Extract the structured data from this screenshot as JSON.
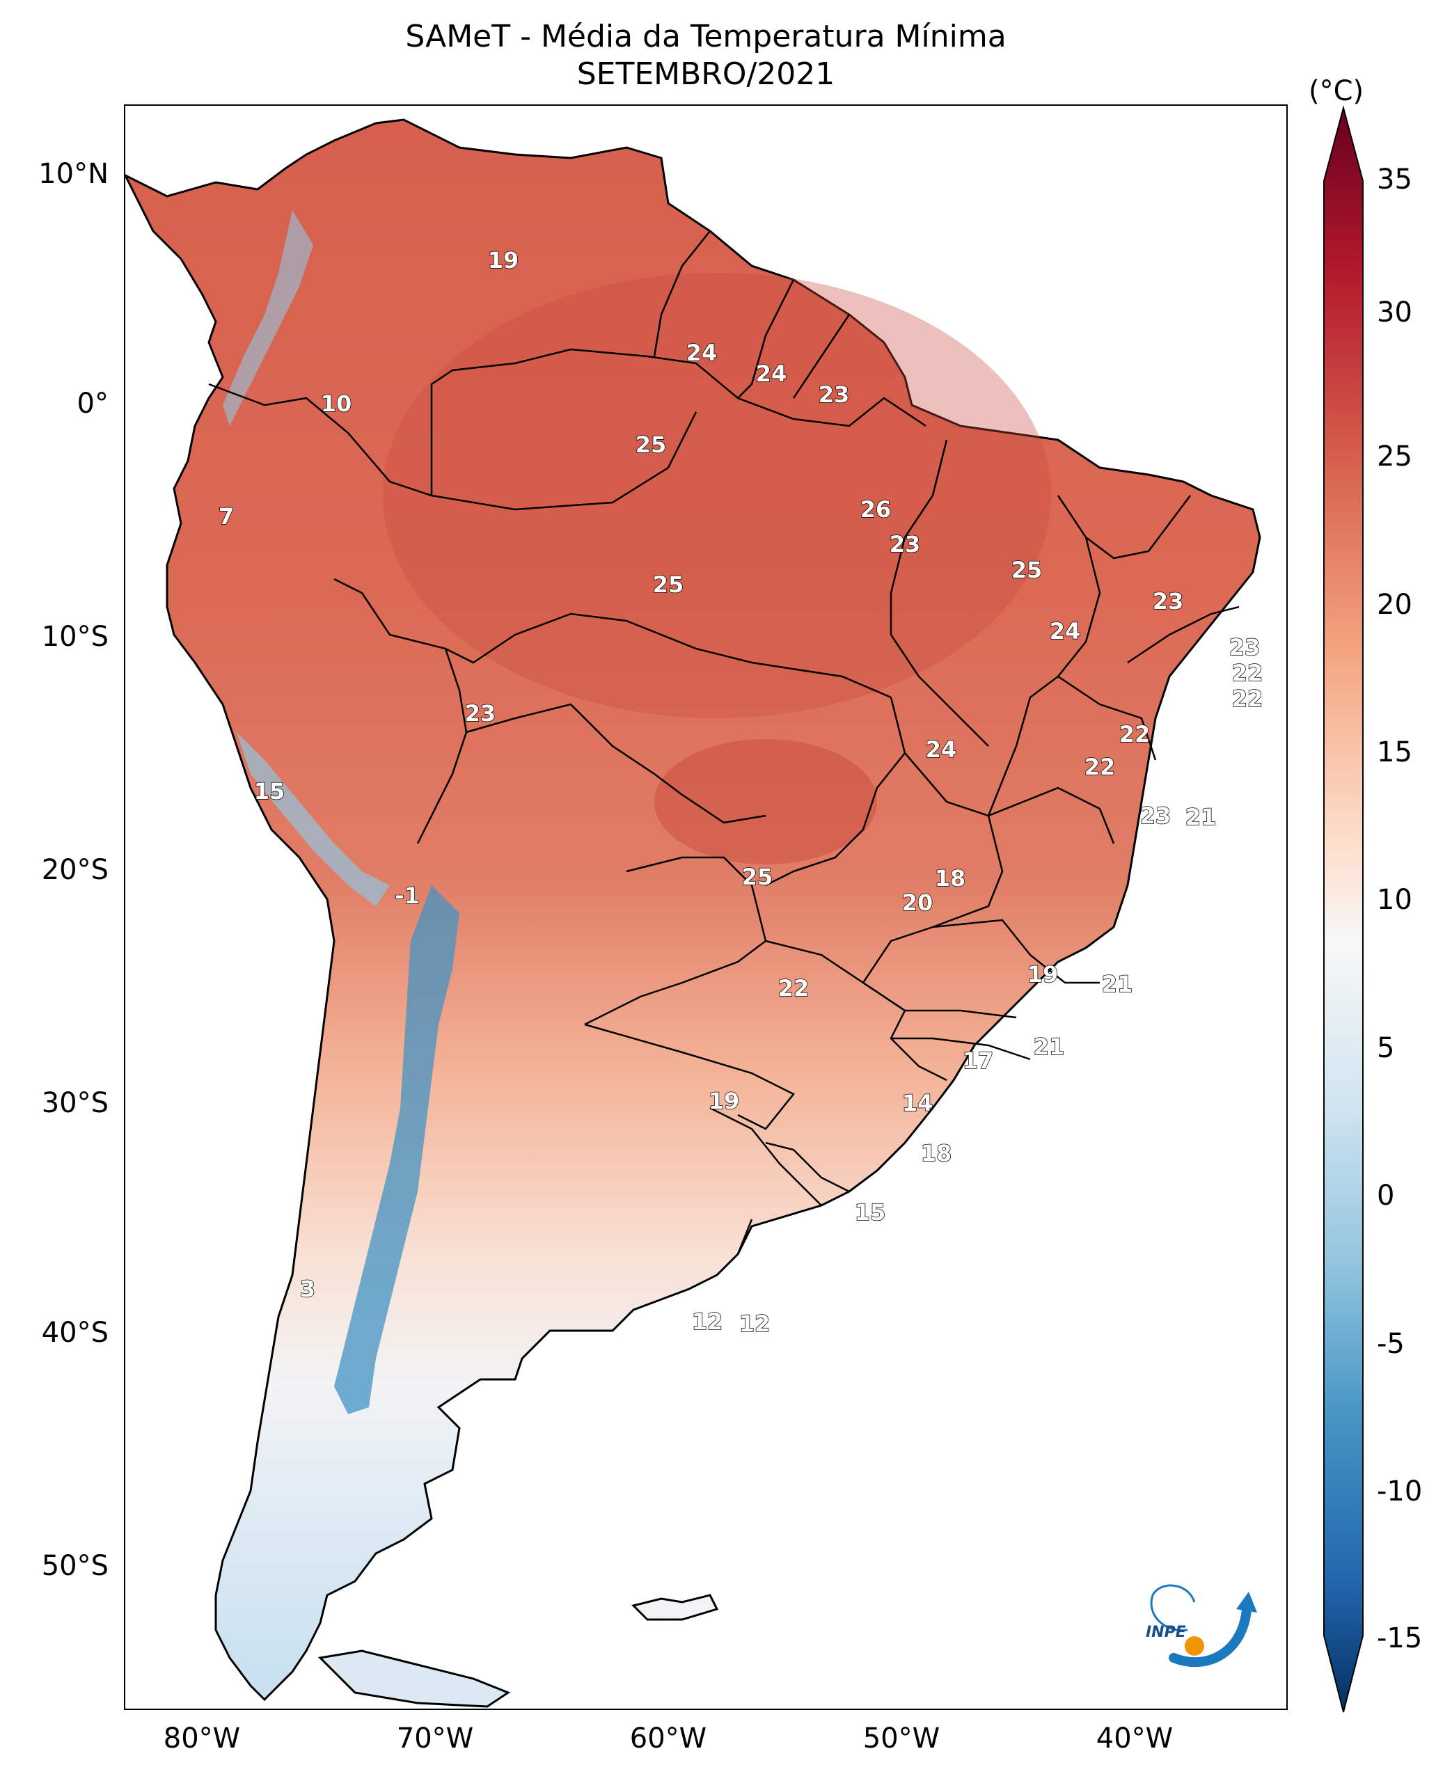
{
  "title": "SAMeT - Média da Temperatura Mínima",
  "subtitle": "SETEMBRO/2021",
  "colorbar": {
    "unit": "(°C)",
    "ticks": [
      "35",
      "30",
      "25",
      "20",
      "15",
      "10",
      "5",
      "0",
      "-5",
      "-10",
      "-15"
    ]
  },
  "axes": {
    "lat_ticks": [
      "10°N",
      "0°",
      "10°S",
      "20°S",
      "30°S",
      "40°S",
      "50°S"
    ],
    "lon_ticks": [
      "80°W",
      "70°W",
      "60°W",
      "50°W",
      "40°W"
    ]
  },
  "logo_text": "INPE",
  "map_labels": [
    "19",
    "24",
    "24",
    "23",
    "10",
    "25",
    "26",
    "7",
    "23",
    "25",
    "25",
    "23",
    "24",
    "23",
    "22",
    "22",
    "23",
    "22",
    "22",
    "24",
    "21",
    "15",
    "23",
    "-1",
    "25",
    "18",
    "20",
    "19",
    "22",
    "21",
    "21",
    "17",
    "19",
    "14",
    "18",
    "15",
    "3",
    "12",
    "12"
  ],
  "colors": {
    "warm_dark": "#b2182b",
    "warm": "#d6604d",
    "warm_light": "#f4a582",
    "neutral": "#f7f7f7",
    "cool_light": "#92c5de",
    "cool": "#4393c3",
    "cool_dark": "#2166ac",
    "cool_darkest": "#053061",
    "logo_blue": "#1a7abf",
    "logo_orange": "#f29400"
  }
}
